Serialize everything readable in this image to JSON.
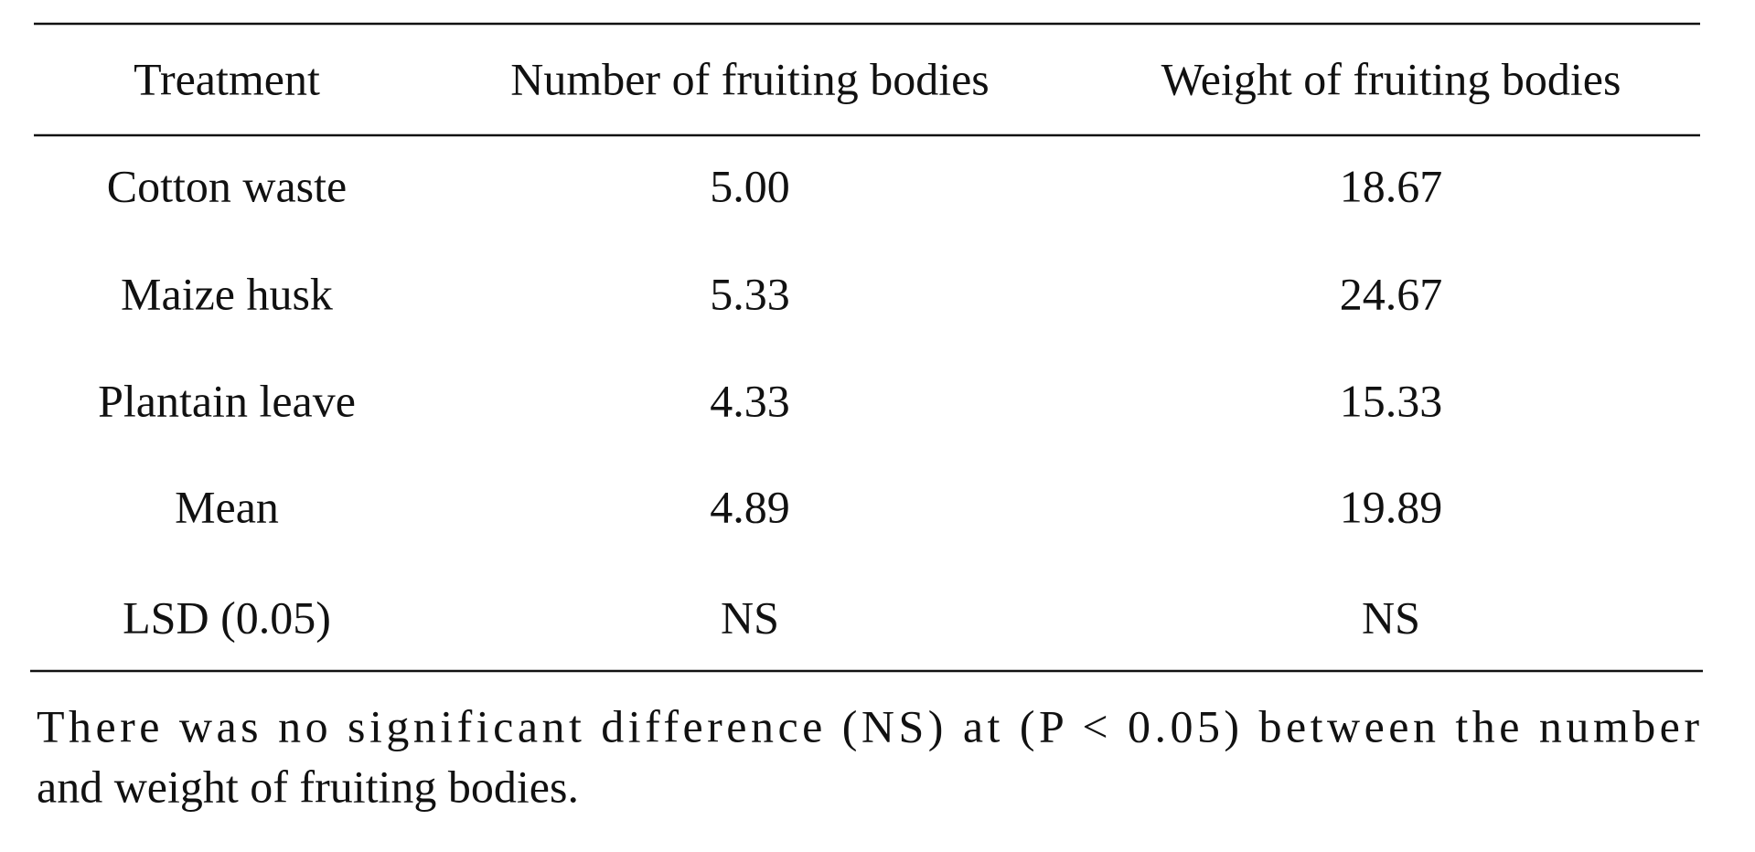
{
  "table": {
    "header": [
      "Treatment",
      "Number of fruiting bodies",
      "Weight of fruiting bodies"
    ],
    "rows": [
      [
        "Cotton waste",
        "5.00",
        "18.67"
      ],
      [
        "Maize husk",
        "5.33",
        "24.67"
      ],
      [
        "Plantain leave",
        "4.33",
        "15.33"
      ],
      [
        "Mean",
        "4.89",
        "19.89"
      ],
      [
        "LSD (0.05)",
        "NS",
        "NS"
      ]
    ]
  },
  "footnote": [
    "There was no significant difference (NS) at (P < 0.05) between the number",
    "and weight of fruiting bodies."
  ]
}
